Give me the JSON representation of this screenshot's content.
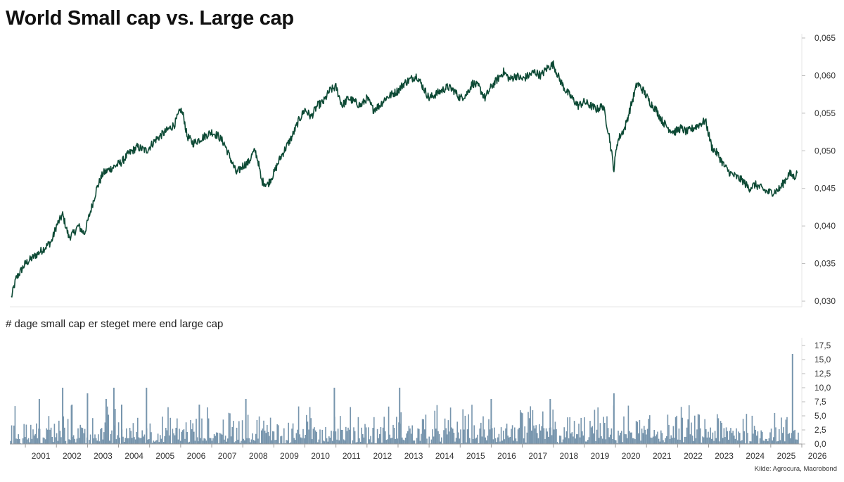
{
  "title": "World Small cap vs. Large cap",
  "source": "Kilde: Agrocura, Macrobond",
  "chart_data": [
    {
      "type": "line",
      "title": "World Small cap vs. Large cap",
      "ylabel": "",
      "ylim": [
        0.03,
        0.065
      ],
      "yticks": [
        "0,065",
        "0,060",
        "0,055",
        "0,050",
        "0,045",
        "0,040",
        "0,035",
        "0,030"
      ],
      "xlim": [
        2000.5,
        2026.0
      ],
      "color": "#0d4a35",
      "series": [
        {
          "name": "World Small cap vs. Large cap",
          "x": [
            2000.55,
            2000.7,
            2001.0,
            2001.3,
            2001.6,
            2001.85,
            2002.0,
            2002.2,
            2002.4,
            2002.55,
            2002.7,
            2002.9,
            2003.1,
            2003.3,
            2003.5,
            2003.7,
            2003.9,
            2004.1,
            2004.3,
            2004.6,
            2004.9,
            2005.2,
            2005.5,
            2005.8,
            2006.0,
            2006.1,
            2006.2,
            2006.4,
            2006.6,
            2006.8,
            2007.0,
            2007.2,
            2007.4,
            2007.6,
            2007.8,
            2008.0,
            2008.2,
            2008.3,
            2008.4,
            2008.5,
            2008.6,
            2008.8,
            2009.0,
            2009.2,
            2009.4,
            2009.6,
            2009.8,
            2010.0,
            2010.2,
            2010.4,
            2010.6,
            2010.8,
            2011.0,
            2011.2,
            2011.4,
            2011.6,
            2011.8,
            2012.0,
            2012.2,
            2012.4,
            2012.6,
            2012.8,
            2013.0,
            2013.2,
            2013.4,
            2013.6,
            2013.8,
            2014.0,
            2014.2,
            2014.4,
            2014.6,
            2014.8,
            2015.0,
            2015.2,
            2015.4,
            2015.6,
            2015.8,
            2016.0,
            2016.2,
            2016.4,
            2016.6,
            2016.8,
            2017.0,
            2017.2,
            2017.4,
            2017.6,
            2017.8,
            2018.0,
            2018.2,
            2018.4,
            2018.6,
            2018.8,
            2019.0,
            2019.2,
            2019.4,
            2019.6,
            2019.8,
            2019.95,
            2020.05,
            2020.15,
            2020.3,
            2020.5,
            2020.7,
            2020.9,
            2021.1,
            2021.3,
            2021.5,
            2021.7,
            2021.9,
            2022.1,
            2022.3,
            2022.5,
            2022.7,
            2022.9,
            2023.1,
            2023.3,
            2023.5,
            2023.7,
            2023.9,
            2024.1,
            2024.3,
            2024.5,
            2024.7,
            2024.9,
            2025.1,
            2025.3,
            2025.45,
            2025.6,
            2025.75,
            2025.85
          ],
          "values": [
            0.0305,
            0.033,
            0.035,
            0.036,
            0.037,
            0.038,
            0.04,
            0.0415,
            0.0385,
            0.039,
            0.04,
            0.039,
            0.042,
            0.045,
            0.047,
            0.0475,
            0.048,
            0.0485,
            0.0495,
            0.0505,
            0.05,
            0.0515,
            0.0525,
            0.0535,
            0.0555,
            0.0545,
            0.052,
            0.051,
            0.0515,
            0.052,
            0.0525,
            0.052,
            0.051,
            0.049,
            0.047,
            0.048,
            0.0485,
            0.0495,
            0.05,
            0.0485,
            0.046,
            0.0455,
            0.047,
            0.049,
            0.0505,
            0.052,
            0.054,
            0.0555,
            0.0545,
            0.056,
            0.0565,
            0.058,
            0.0585,
            0.056,
            0.057,
            0.0565,
            0.056,
            0.057,
            0.0555,
            0.056,
            0.057,
            0.0575,
            0.058,
            0.059,
            0.0595,
            0.06,
            0.0585,
            0.057,
            0.0575,
            0.058,
            0.0585,
            0.058,
            0.057,
            0.0575,
            0.059,
            0.0585,
            0.057,
            0.0585,
            0.0595,
            0.0605,
            0.0595,
            0.06,
            0.0595,
            0.06,
            0.0605,
            0.06,
            0.061,
            0.0615,
            0.0595,
            0.058,
            0.057,
            0.056,
            0.0565,
            0.056,
            0.0555,
            0.056,
            0.052,
            0.0475,
            0.051,
            0.052,
            0.053,
            0.056,
            0.059,
            0.058,
            0.0565,
            0.0555,
            0.054,
            0.053,
            0.0525,
            0.053,
            0.0525,
            0.053,
            0.0535,
            0.054,
            0.0505,
            0.0495,
            0.048,
            0.047,
            0.0465,
            0.046,
            0.045,
            0.0455,
            0.045,
            0.0445,
            0.0445,
            0.045,
            0.046,
            0.047,
            0.0465,
            0.047
          ]
        }
      ]
    },
    {
      "type": "bar",
      "title": "# dage small cap er steget mere end large cap",
      "ylabel": "",
      "ylim": [
        0,
        18
      ],
      "yticks": [
        "17,5",
        "15,0",
        "12,5",
        "10,0",
        "7,5",
        "5,0",
        "2,5",
        "0,0"
      ],
      "xlim": [
        2000.5,
        2026.0
      ],
      "xticks": [
        "2001",
        "2002",
        "2003",
        "2004",
        "2005",
        "2006",
        "2007",
        "2008",
        "2009",
        "2010",
        "2011",
        "2012",
        "2013",
        "2014",
        "2015",
        "2016",
        "2017",
        "2018",
        "2019",
        "2020",
        "2021",
        "2022",
        "2023",
        "2024",
        "2025",
        "2026"
      ],
      "color": "#7795ad",
      "series": [
        {
          "name": "# dage small cap er steget mere end large cap",
          "peaks_x": [
            2001.45,
            2002.2,
            2002.5,
            2003.0,
            2003.6,
            2003.85,
            2004.1,
            2004.9,
            2006.6,
            2008.1,
            2010.95,
            2013.05,
            2016.0,
            2017.9,
            2019.95,
            2025.7
          ],
          "peaks_values": [
            8,
            10,
            7,
            9,
            8,
            10,
            7,
            10,
            7,
            8,
            10,
            10,
            8,
            8,
            9,
            16
          ]
        }
      ]
    }
  ]
}
